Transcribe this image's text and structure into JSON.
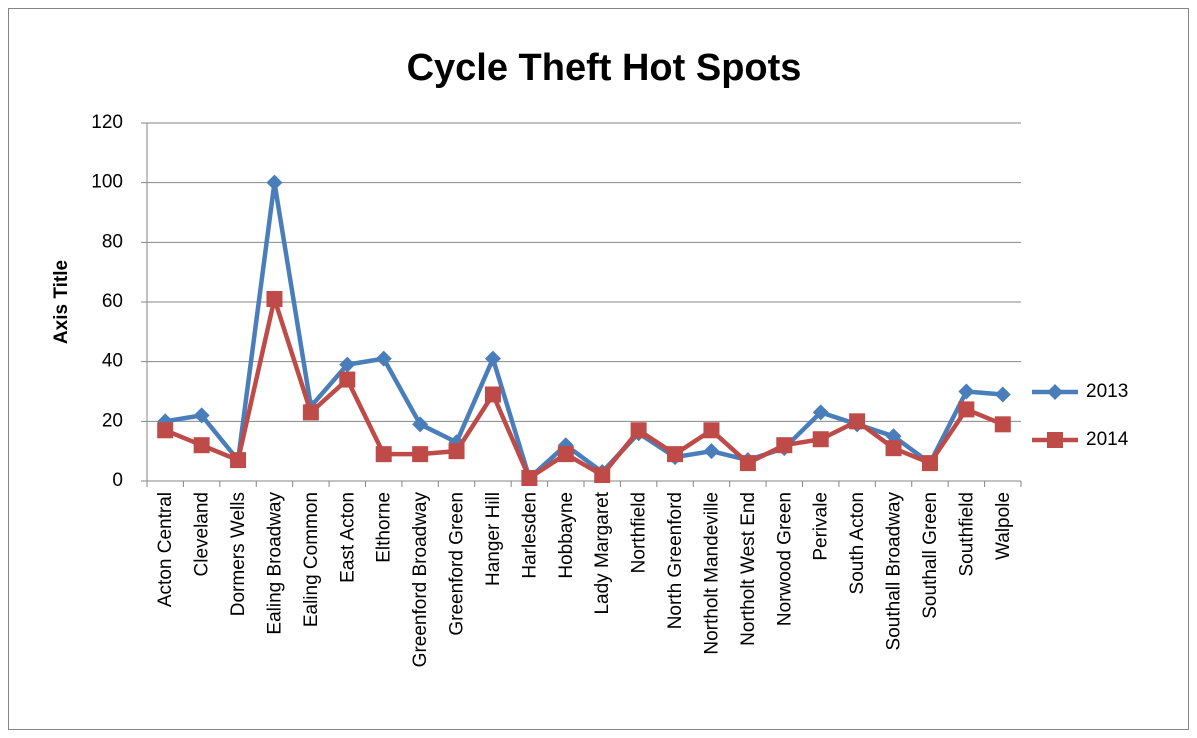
{
  "chart_data": {
    "type": "line",
    "title": "Cycle Theft Hot Spots",
    "y_label": "Axis Title",
    "categories": [
      "Acton Central",
      "Cleveland",
      "Dormers Wells",
      "Ealing Broadway",
      "Ealing Common",
      "East Acton",
      "Elthorne",
      "Greenford Broadway",
      "Greenford Green",
      "Hanger Hill",
      "Harlesden",
      "Hobbayne",
      "Lady Margaret",
      "Northfield",
      "North Greenford",
      "Northolt Mandeville",
      "Northolt West End",
      "Norwood Green",
      "Perivale",
      "South Acton",
      "Southall Broadway",
      "Southall Green",
      "Southfield",
      "Walpole"
    ],
    "series": [
      {
        "name": "2013",
        "color": "#4a7ebb",
        "marker": "diamond",
        "values": [
          20,
          22,
          7,
          100,
          25,
          39,
          41,
          19,
          13,
          41,
          1,
          12,
          3,
          16,
          8,
          10,
          7,
          11,
          23,
          19,
          15,
          6,
          30,
          29
        ]
      },
      {
        "name": "2014",
        "color": "#be4b48",
        "marker": "square",
        "values": [
          17,
          12,
          7,
          61,
          23,
          34,
          9,
          9,
          10,
          29,
          1,
          9,
          2,
          17,
          9,
          17,
          6,
          12,
          14,
          20,
          11,
          6,
          24,
          19
        ]
      }
    ],
    "ylim": [
      0,
      120
    ],
    "yticks": [
      0,
      20,
      40,
      60,
      80,
      100,
      120
    ],
    "grid": true,
    "legend": "right"
  }
}
